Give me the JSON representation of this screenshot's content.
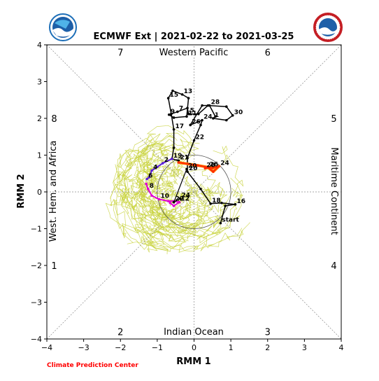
{
  "chart_data": {
    "type": "line",
    "title": "ECMWF Ext | 2021-02-22 to 2021-03-25",
    "xlabel": "RMM 1",
    "ylabel": "RMM 2",
    "xlim": [
      -4,
      4
    ],
    "ylim": [
      -4,
      4
    ],
    "xticks": [
      "−4",
      "−3",
      "−2",
      "−1",
      "0",
      "1",
      "2",
      "3",
      "4"
    ],
    "yticks": [
      "−4",
      "−3",
      "−2",
      "−1",
      "0",
      "1",
      "2",
      "3",
      "4"
    ],
    "region_labels": {
      "top": "Western Pacific",
      "bottom": "Indian Ocean",
      "left": "West. Hem. and Africa",
      "right": "Maritime Continent"
    },
    "phases": [
      {
        "label": "1",
        "x": -3.8,
        "y": -2.0
      },
      {
        "label": "2",
        "x": -2.0,
        "y": -3.8
      },
      {
        "label": "3",
        "x": 2.0,
        "y": -3.8
      },
      {
        "label": "4",
        "x": 3.8,
        "y": -2.0
      },
      {
        "label": "5",
        "x": 3.8,
        "y": 2.0
      },
      {
        "label": "6",
        "x": 2.0,
        "y": 3.8
      },
      {
        "label": "7",
        "x": -2.0,
        "y": 3.8
      },
      {
        "label": "8",
        "x": -3.8,
        "y": 2.0
      }
    ],
    "credit": "Climate Prediction Center",
    "observed_track": [
      {
        "label": "start",
        "x": 0.72,
        "y": -0.85
      },
      {
        "label": "",
        "x": 0.85,
        "y": -0.38
      },
      {
        "label": "16",
        "x": 1.12,
        "y": -0.34
      },
      {
        "label": "",
        "x": 0.75,
        "y": -0.3
      },
      {
        "label": "18",
        "x": 0.45,
        "y": -0.32
      },
      {
        "label": "",
        "x": 0.18,
        "y": 0.08
      },
      {
        "label": "20",
        "x": -0.18,
        "y": 0.55
      },
      {
        "label": "",
        "x": -0.18,
        "y": 0.92
      },
      {
        "label": "22",
        "x": 0.0,
        "y": 1.4
      },
      {
        "label": "",
        "x": 0.18,
        "y": 1.82
      },
      {
        "label": "24",
        "x": 0.22,
        "y": 1.95
      },
      {
        "label": "26",
        "x": -0.1,
        "y": 1.82
      },
      {
        "label": "",
        "x": 0.22,
        "y": 2.35
      },
      {
        "label": "28",
        "x": 0.42,
        "y": 2.35
      },
      {
        "label": "",
        "x": 0.58,
        "y": 2.05
      },
      {
        "label": "1",
        "x": 0.52,
        "y": 2.0
      },
      {
        "label": "",
        "x": 0.88,
        "y": 1.95
      },
      {
        "label": "30",
        "x": 1.05,
        "y": 2.08
      },
      {
        "label": "",
        "x": 0.88,
        "y": 2.32
      },
      {
        "label": "",
        "x": 0.38,
        "y": 2.35
      },
      {
        "label": "",
        "x": 0.12,
        "y": 2.12
      },
      {
        "label": "5",
        "x": -0.15,
        "y": 2.12
      },
      {
        "label": "",
        "x": -0.18,
        "y": 2.28
      },
      {
        "label": "7",
        "x": -0.45,
        "y": 2.18
      },
      {
        "label": "9",
        "x": -0.68,
        "y": 2.1
      },
      {
        "label": "",
        "x": -0.55,
        "y": 2.02
      },
      {
        "label": "11",
        "x": -0.2,
        "y": 2.05
      },
      {
        "label": "",
        "x": -0.15,
        "y": 2.55
      },
      {
        "label": "13",
        "x": -0.32,
        "y": 2.65
      },
      {
        "label": "",
        "x": -0.58,
        "y": 2.75
      },
      {
        "label": "15",
        "x": -0.7,
        "y": 2.55
      },
      {
        "label": "",
        "x": -0.62,
        "y": 2.12
      },
      {
        "label": "17",
        "x": -0.55,
        "y": 1.7
      },
      {
        "label": "",
        "x": -0.55,
        "y": 1.2
      },
      {
        "label": "19",
        "x": -0.6,
        "y": 0.9
      },
      {
        "label": "21",
        "x": -0.42,
        "y": 0.85
      }
    ],
    "forecast_red": [
      {
        "label": "",
        "x": -0.42,
        "y": 0.8
      },
      {
        "label": "",
        "x": 0.1,
        "y": 0.72
      },
      {
        "label": "",
        "x": 0.5,
        "y": 0.65
      },
      {
        "label": "24",
        "x": 0.68,
        "y": 0.7
      },
      {
        "label": "",
        "x": 0.52,
        "y": 0.55
      },
      {
        "label": "26",
        "x": 0.38,
        "y": 0.66
      },
      {
        "label": "28",
        "x": 0.3,
        "y": 0.64
      }
    ],
    "forecast_purple": [
      {
        "label": "",
        "x": -0.6,
        "y": 0.9
      },
      {
        "label": "2",
        "x": -0.85,
        "y": 0.78
      },
      {
        "label": "",
        "x": -1.0,
        "y": 0.68
      },
      {
        "label": "4",
        "x": -1.15,
        "y": 0.58
      },
      {
        "label": "",
        "x": -1.22,
        "y": 0.4
      },
      {
        "label": "6",
        "x": -1.28,
        "y": 0.35
      }
    ],
    "forecast_magenta": [
      {
        "label": "",
        "x": -1.3,
        "y": 0.22
      },
      {
        "label": "8",
        "x": -1.25,
        "y": 0.08
      },
      {
        "label": "",
        "x": -1.15,
        "y": -0.1
      },
      {
        "label": "10",
        "x": -0.95,
        "y": -0.2
      },
      {
        "label": "",
        "x": -0.7,
        "y": -0.25
      },
      {
        "label": "",
        "x": -0.55,
        "y": -0.25
      },
      {
        "label": "12",
        "x": -0.4,
        "y": -0.28
      },
      {
        "label": "",
        "x": -0.55,
        "y": -0.38
      },
      {
        "label": "",
        "x": -0.65,
        "y": -0.3
      }
    ],
    "forecast_black_tail": [
      {
        "label": "20",
        "x": -0.2,
        "y": 0.62
      },
      {
        "label": "22",
        "x": -0.55,
        "y": -0.28
      },
      {
        "label": "24",
        "x": -0.38,
        "y": -0.18
      }
    ],
    "ensemble_color": "#c8d23c",
    "colors": {
      "observed": "#000000",
      "forecast_red": "#ff2b00",
      "forecast_orange": "#ff8c00",
      "forecast_purple": "#5a1fd6",
      "forecast_magenta": "#e000d0",
      "guide": "#8a8a8a",
      "credit": "#ff0000"
    }
  }
}
